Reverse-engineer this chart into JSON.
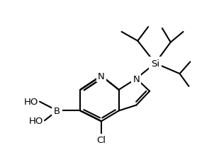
{
  "bg_color": "#ffffff",
  "line_color": "#000000",
  "line_width": 1.5,
  "font_size": 9.5,
  "figsize": [
    2.78,
    2.3
  ],
  "dpi": 100,
  "xlim": [
    0,
    278
  ],
  "ylim": [
    0,
    230
  ]
}
